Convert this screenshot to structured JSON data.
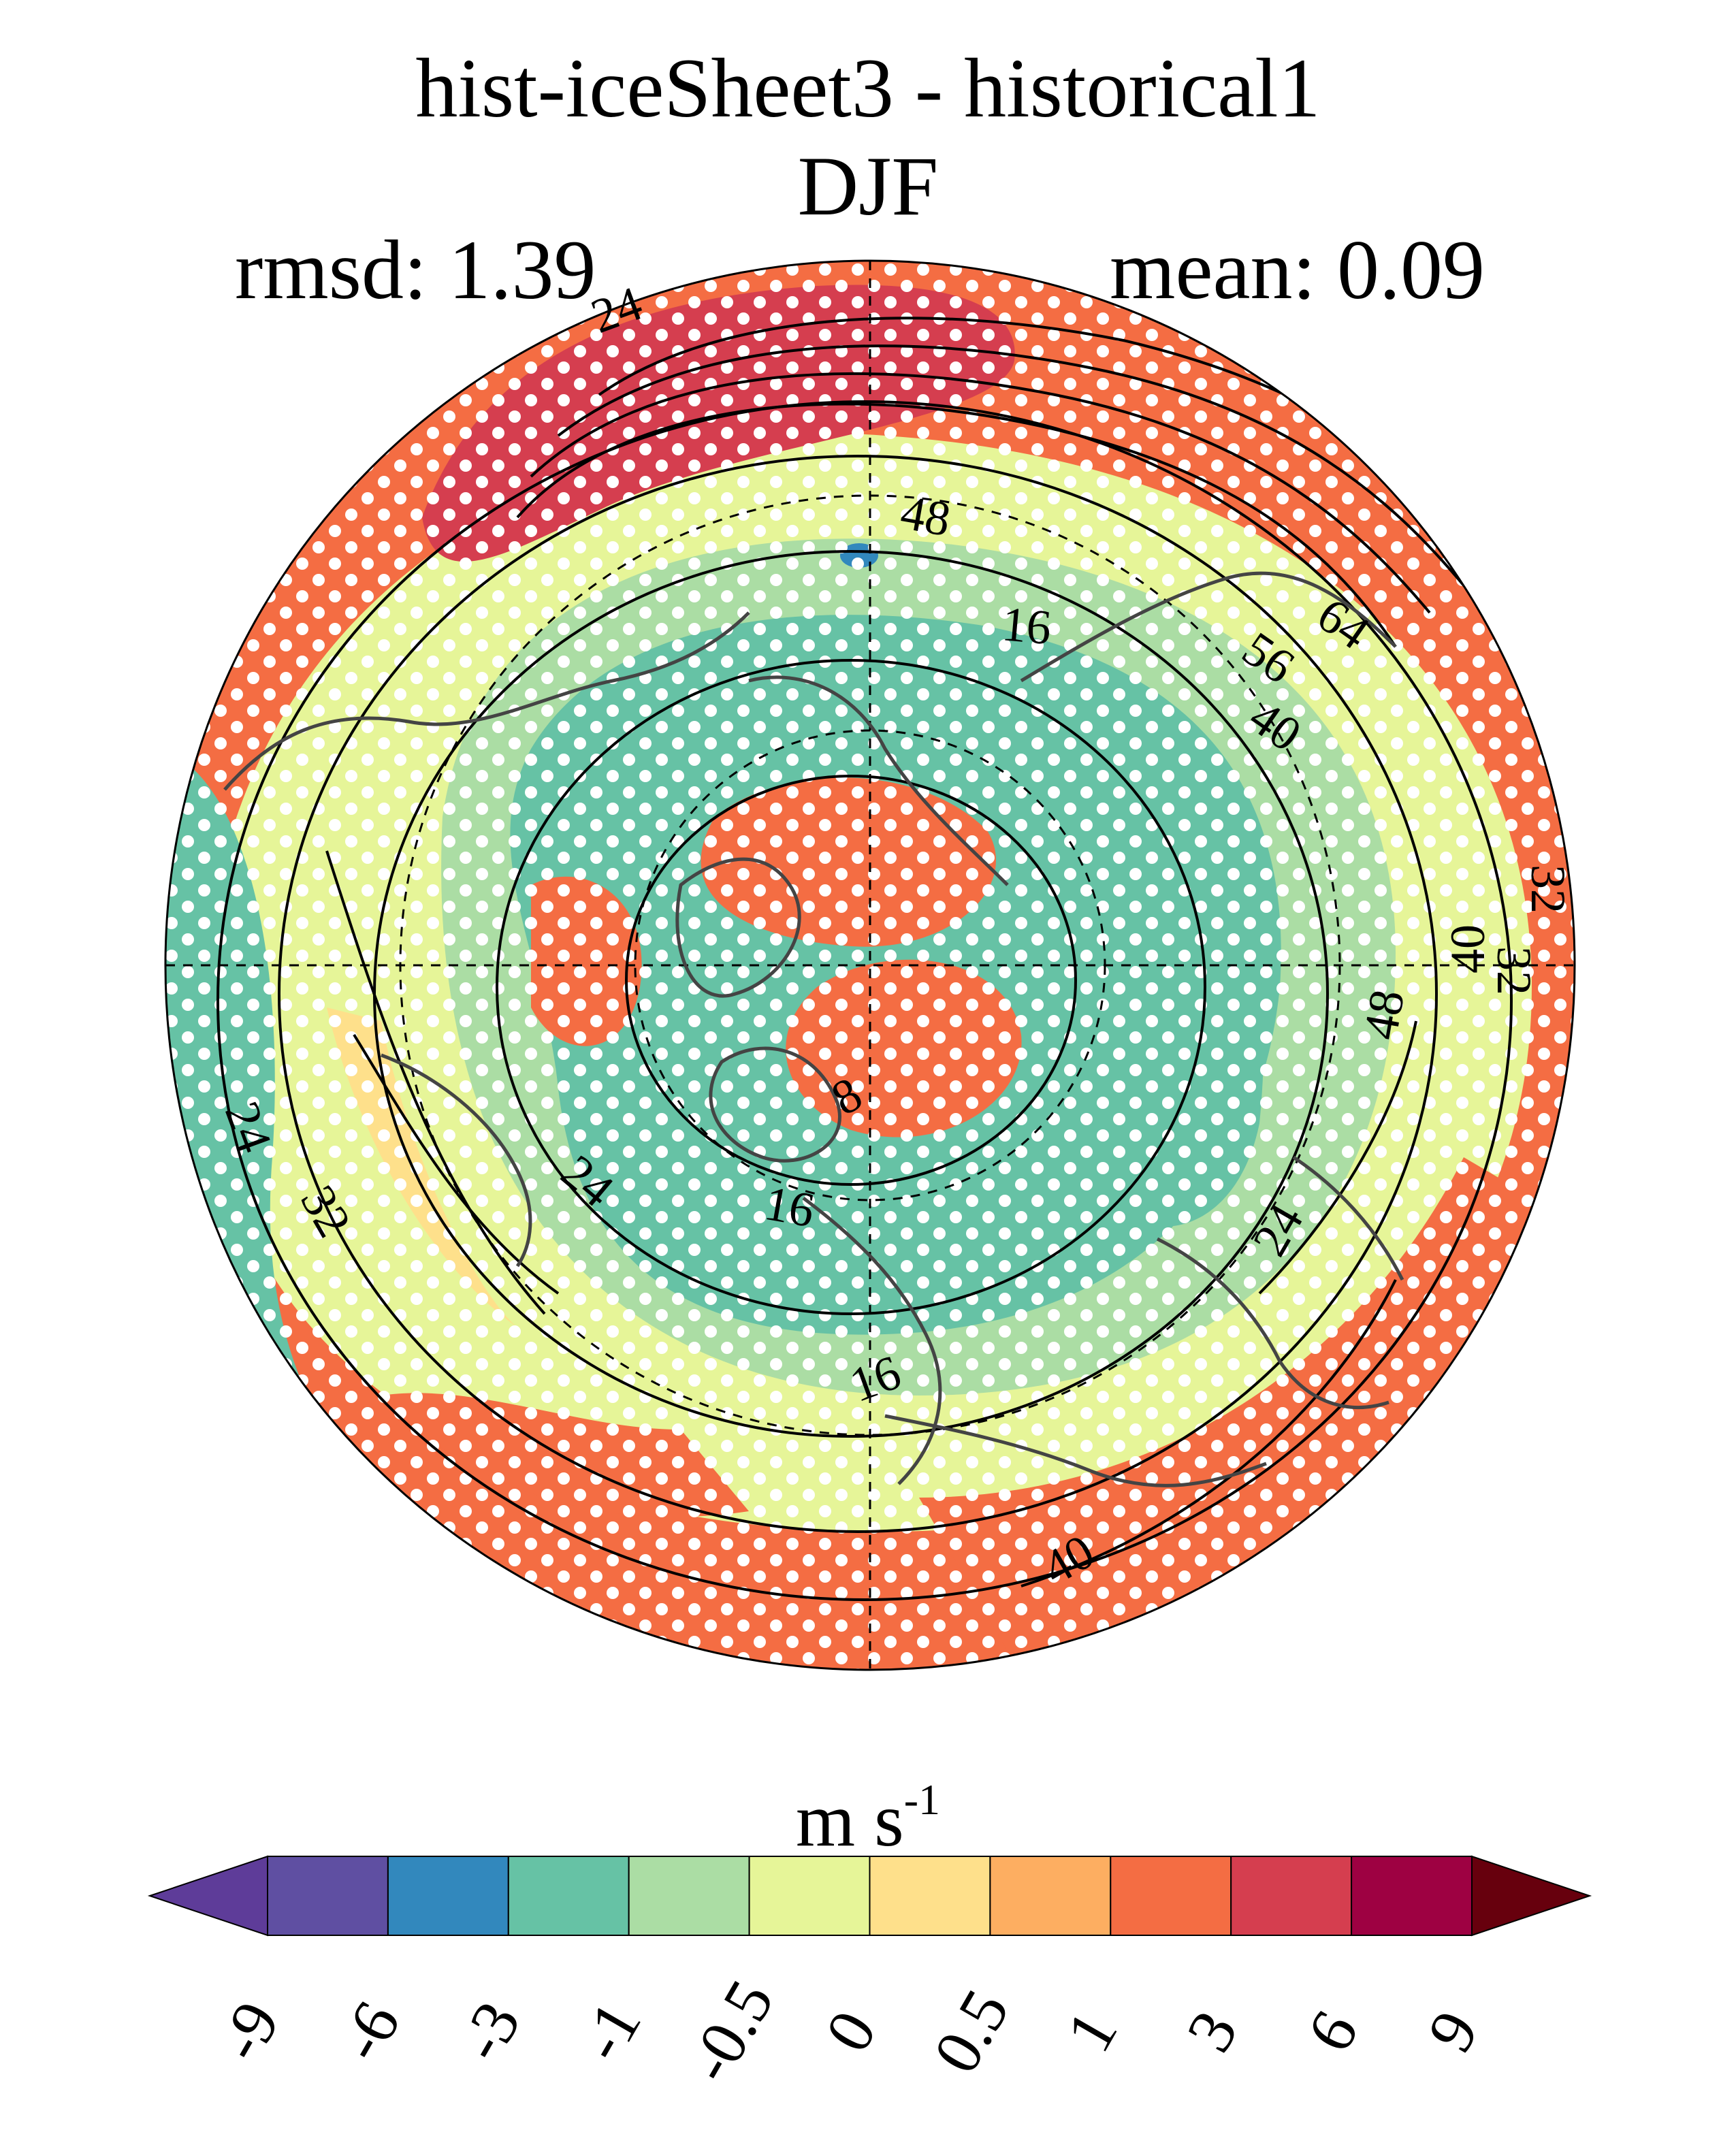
{
  "title": {
    "line1": "hist-iceSheet3 - historical1",
    "line2": "DJF"
  },
  "stats": {
    "rmsd": "rmsd: 1.39",
    "mean": "mean: 0.09"
  },
  "map": {
    "projection": "north-polar-stereographic",
    "field": "zonal wind difference",
    "contour_labels": [
      "24",
      "48",
      "16",
      "56",
      "64",
      "40",
      "32",
      "40",
      "48",
      "32",
      "24",
      "32",
      "24",
      "8",
      "16",
      "24",
      "16",
      "40"
    ],
    "stippling": true
  },
  "colorbar": {
    "unit_base": "m s",
    "unit_exp": "-1",
    "tick_labels": [
      "-9",
      "-6",
      "-3",
      "-1",
      "-0.5",
      "0",
      "0.5",
      "1",
      "3",
      "6",
      "9"
    ],
    "colors": [
      "#5e3c99",
      "#5f4fa2",
      "#3288bd",
      "#66c2a5",
      "#abdda4",
      "#e6f598",
      "#fee08b",
      "#fdae61",
      "#f46d43",
      "#d53e4f",
      "#9e0142",
      "#67000d"
    ]
  }
}
